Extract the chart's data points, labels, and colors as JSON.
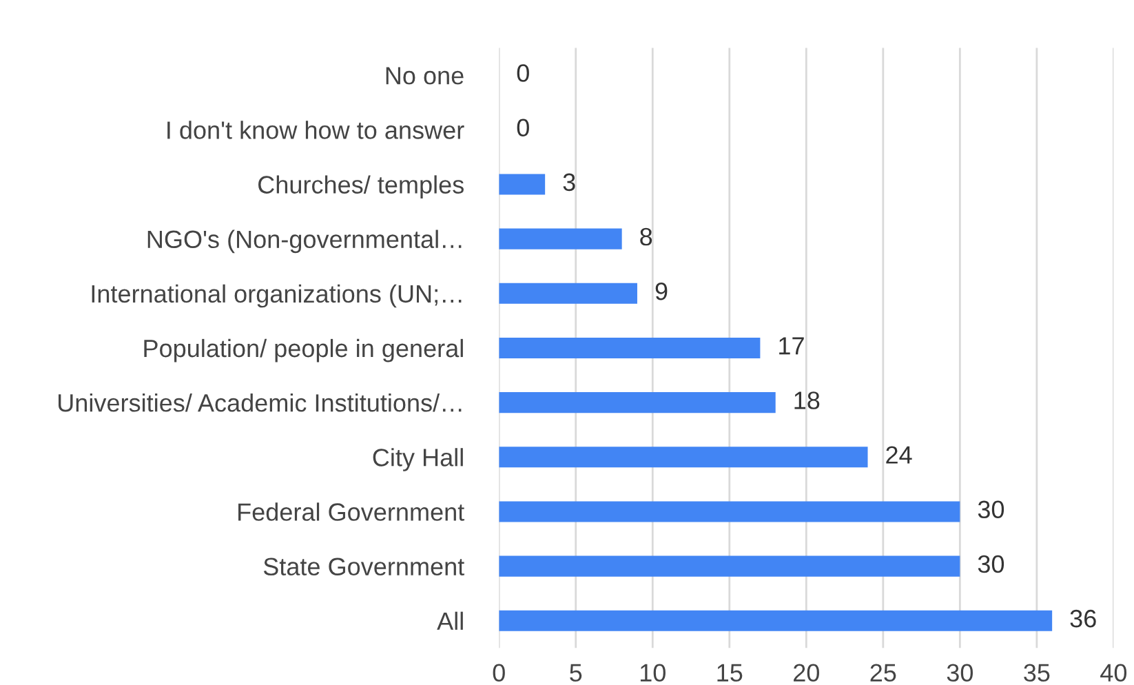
{
  "chart_data": {
    "type": "bar",
    "orientation": "horizontal",
    "categories": [
      "No one",
      "I don't know how to answer",
      "Churches/ temples",
      "NGO's (Non-governmental…",
      "International organizations (UN;…",
      "Population/ people in general",
      "Universities/ Academic Institutions/…",
      "City Hall",
      "Federal Government",
      "State Government",
      "All"
    ],
    "values": [
      0,
      0,
      3,
      8,
      9,
      17,
      18,
      24,
      30,
      30,
      36
    ],
    "color": "#4285f4",
    "xlim": [
      0,
      40
    ],
    "xticks": [
      0,
      5,
      10,
      15,
      20,
      25,
      30,
      35,
      40
    ],
    "grid": "x",
    "data_labels": true,
    "legend": false
  }
}
